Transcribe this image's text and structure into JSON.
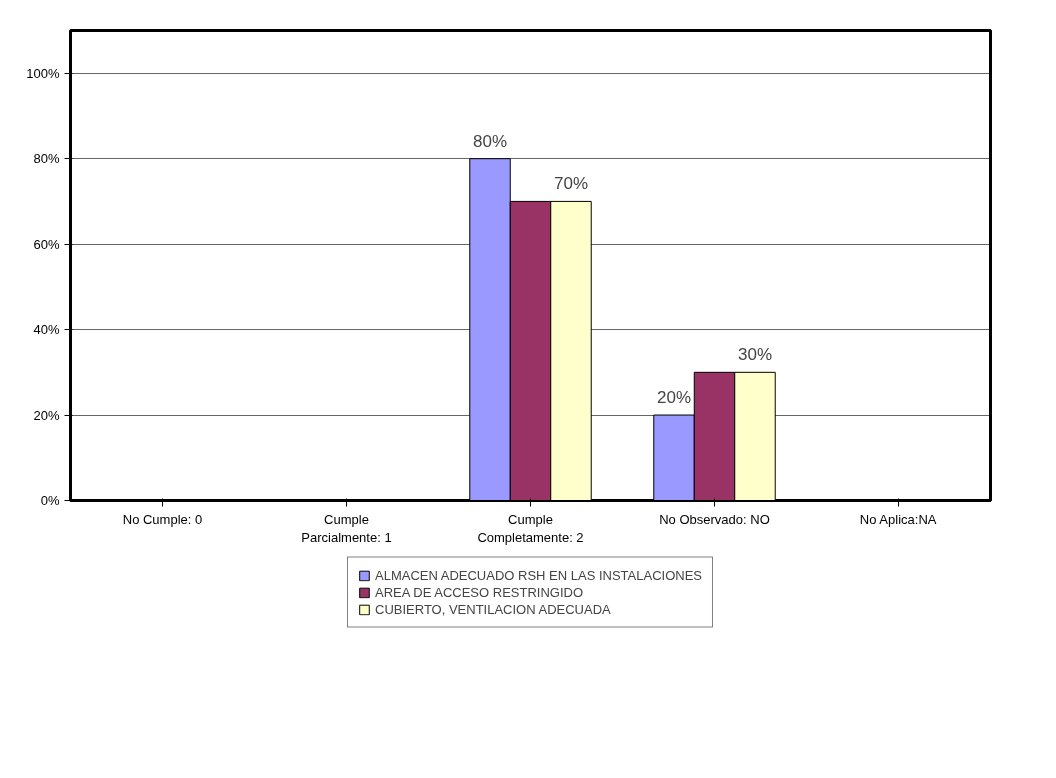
{
  "chart_data": {
    "type": "bar",
    "categories": [
      "No Cumple: 0",
      "Cumple\nParcialmente: 1",
      "Cumple\nCompletamente: 2",
      "No Observado: NO",
      "No Aplica:NA"
    ],
    "series": [
      {
        "name": "ALMACEN ADECUADO RSH EN LAS INSTALACIONES",
        "color": "#9999ff",
        "values": [
          0,
          0,
          80,
          20,
          0
        ],
        "value_labels": [
          null,
          null,
          "80%",
          "20%",
          null
        ]
      },
      {
        "name": "AREA DE ACCESO RESTRINGIDO",
        "color": "#993366",
        "values": [
          0,
          0,
          70,
          30,
          0
        ],
        "value_labels": [
          null,
          null,
          null,
          null,
          null
        ]
      },
      {
        "name": "CUBIERTO, VENTILACION ADECUADA",
        "color": "#ffffcc",
        "values": [
          0,
          0,
          70,
          30,
          0
        ],
        "value_labels": [
          null,
          null,
          "70%",
          "30%",
          null
        ]
      }
    ],
    "ylim": [
      0,
      110
    ],
    "yticks": [
      {
        "value": 0,
        "label": "0%"
      },
      {
        "value": 20,
        "label": "20%"
      },
      {
        "value": 40,
        "label": "40%"
      },
      {
        "value": 60,
        "label": "60%"
      },
      {
        "value": 80,
        "label": "80%"
      },
      {
        "value": 100,
        "label": "100%"
      }
    ],
    "grid": "y",
    "legend": "bottom"
  }
}
